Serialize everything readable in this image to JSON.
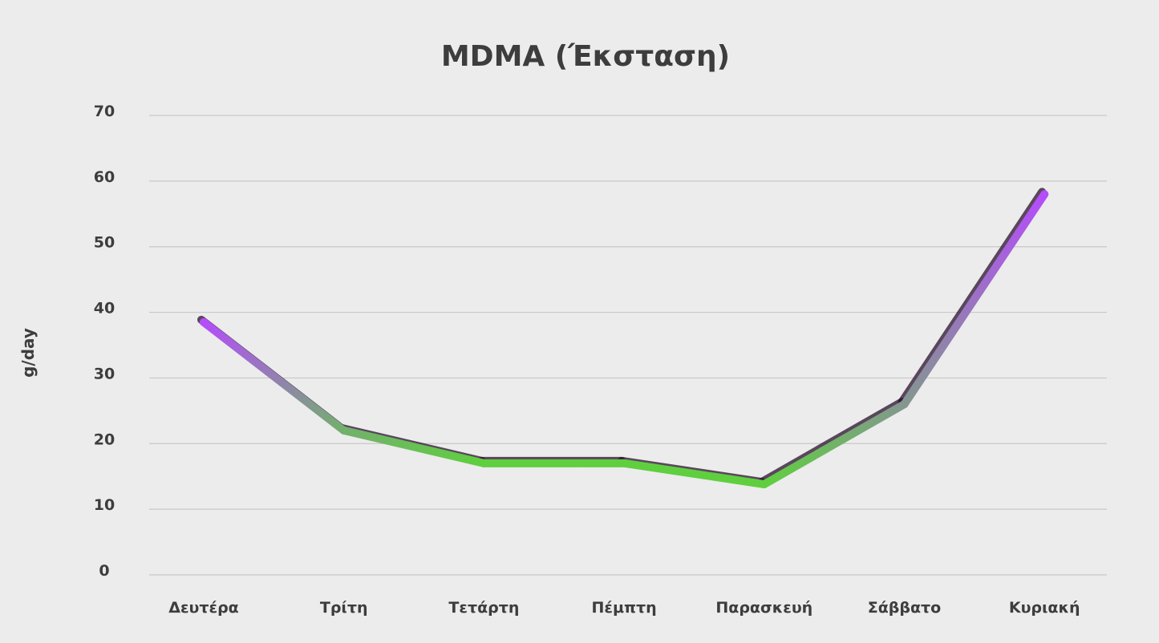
{
  "chart_data": {
    "type": "line",
    "title": "MDMA (Έκσταση)",
    "xlabel": "",
    "ylabel": "g/day",
    "categories": [
      "Δευτέρα",
      "Τρίτη",
      "Τετάρτη",
      "Πέμπτη",
      "Παρασκευή",
      "Σάββατο",
      "Κυριακή"
    ],
    "series": [
      {
        "values": [
          38.5,
          22,
          17,
          17,
          13.8,
          26,
          58
        ]
      }
    ],
    "ylim": [
      0,
      70
    ],
    "yticks": [
      0,
      10,
      20,
      30,
      40,
      50,
      60,
      70
    ],
    "grid": true,
    "legend": "none",
    "colors": {
      "high": "#b44dfa",
      "low": "#5fcf3f",
      "shadow": "#2a0f2e",
      "text": "#3d3d3d",
      "grid": "#c8c8c8",
      "background": "#ececec"
    }
  }
}
